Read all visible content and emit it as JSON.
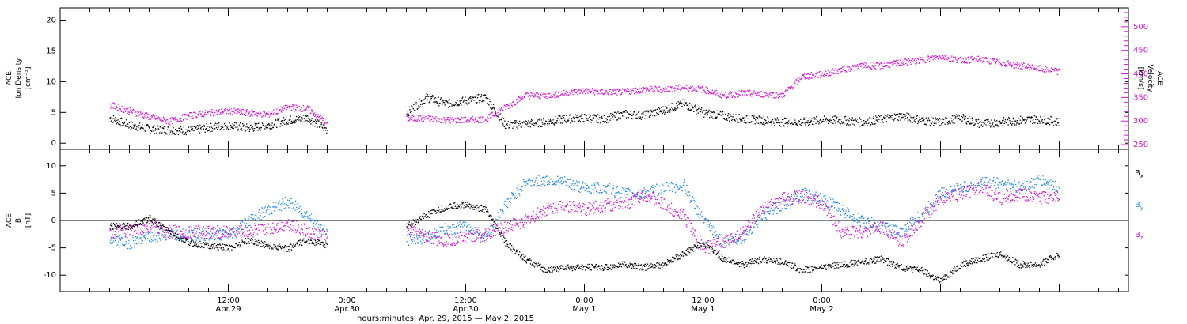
{
  "chart_data": [
    {
      "type": "scatter",
      "panel": "top",
      "ylabel_lines": [
        "ACE",
        "Ion Density",
        "[cm⁻³]"
      ],
      "yticks": [
        "0",
        "5",
        "10",
        "15",
        "20"
      ],
      "ylim": [
        -1,
        22
      ],
      "right_axis": {
        "label_lines": [
          "ACE",
          "Velocity",
          "[km/s]"
        ],
        "ticks": [
          "250",
          "300",
          "350",
          "400",
          "450",
          "500"
        ],
        "ylim": [
          240,
          540
        ],
        "color": "#d414d4"
      },
      "x_hours": [
        0,
        2,
        4,
        6,
        8,
        10,
        12,
        14,
        16,
        18,
        20,
        22,
        24,
        26,
        28,
        30,
        32,
        34,
        36,
        38,
        40,
        42,
        44,
        46,
        48,
        50,
        52,
        54,
        56,
        58,
        60,
        62,
        64,
        66,
        68,
        70,
        72,
        74,
        76,
        78,
        80,
        82,
        84,
        86,
        88,
        90,
        92,
        94,
        96
      ],
      "series": [
        {
          "color": "#000000",
          "values": [
            4.2,
            3,
            2.4,
            2.2,
            2.1,
            2.6,
            3,
            2.5,
            3,
            3.8,
            4.2,
            2.2,
            null,
            null,
            null,
            5,
            7.5,
            6.5,
            7,
            7.5,
            3,
            3.2,
            3.5,
            4,
            4.2,
            4,
            4.8,
            4.6,
            5.5,
            6.5,
            5,
            4.5,
            4,
            3.8,
            3.5,
            3.5,
            3.8,
            3.8,
            3.5,
            4,
            4.5,
            3.8,
            3.5,
            4.2,
            3.2,
            3.5,
            3.8,
            4,
            3.5
          ]
        },
        {
          "color": "#d414d4",
          "values": [
            335,
            322,
            310,
            300,
            312,
            318,
            322,
            318,
            315,
            330,
            327,
            296,
            null,
            null,
            null,
            306,
            306,
            303,
            303,
            305,
            330,
            355,
            355,
            360,
            365,
            362,
            363,
            368,
            368,
            372,
            368,
            355,
            360,
            358,
            356,
            395,
            400,
            410,
            418,
            418,
            425,
            430,
            438,
            430,
            432,
            425,
            418,
            412,
            405
          ]
        }
      ]
    },
    {
      "type": "scatter",
      "panel": "bottom",
      "ylabel_lines": [
        "ACE",
        "B",
        "[nT]"
      ],
      "yticks": [
        "-10",
        "-5",
        "0",
        "5",
        "10"
      ],
      "ylim": [
        -13,
        13
      ],
      "zero_line": true,
      "x_hours": [
        0,
        2,
        4,
        6,
        8,
        10,
        12,
        14,
        16,
        18,
        20,
        22,
        24,
        26,
        28,
        30,
        32,
        34,
        36,
        38,
        40,
        42,
        44,
        46,
        48,
        50,
        52,
        54,
        56,
        58,
        60,
        62,
        64,
        66,
        68,
        70,
        72,
        74,
        76,
        78,
        80,
        82,
        84,
        86,
        88,
        90,
        92,
        94,
        96
      ],
      "series": [
        {
          "name": "B",
          "subscript": "x",
          "color": "#000000",
          "values": [
            -1,
            -1,
            0.5,
            -2,
            -4,
            -4.5,
            -5,
            -3.5,
            -4.5,
            -5,
            -3.5,
            -4.5,
            null,
            null,
            null,
            -1,
            1,
            2.5,
            3,
            2,
            -4,
            -7,
            -9,
            -8.5,
            -8.5,
            -8.5,
            -8,
            -8.5,
            -8,
            -6,
            -4,
            -7,
            -8,
            -7,
            -7.5,
            -9,
            -8.5,
            -8,
            -7.5,
            -7,
            -8.5,
            -9,
            -11,
            -8,
            -7,
            -6,
            -8,
            -8,
            -6
          ]
        },
        {
          "name": "B",
          "subscript": "y",
          "color": "#1e88e5",
          "values": [
            -3.5,
            -4,
            -3,
            -2.5,
            -2.5,
            -2.5,
            -2.5,
            0,
            2,
            3.5,
            1,
            -2.5,
            null,
            null,
            null,
            -3.5,
            -3,
            -1.5,
            -1,
            -3,
            3,
            7,
            7.5,
            7,
            6,
            6,
            5,
            5,
            6,
            6.5,
            0,
            -4,
            -3,
            1,
            3,
            5,
            4,
            2,
            0,
            -1,
            -2,
            1,
            5,
            6,
            7,
            7,
            6,
            7.5,
            6
          ]
        },
        {
          "name": "B",
          "subscript": "z",
          "color": "#d414d4",
          "values": [
            -2,
            -2,
            -1,
            -2,
            -2,
            -2,
            -2,
            -2,
            -1.5,
            -0.5,
            -2,
            -3,
            null,
            null,
            null,
            -1.5,
            -3,
            -3.5,
            -3,
            -2.5,
            -1,
            0,
            2,
            3,
            2,
            3,
            3,
            5,
            3,
            1,
            -5,
            -4,
            -2,
            2,
            4,
            4.5,
            3,
            -2,
            -2,
            -1,
            -4,
            0,
            4,
            5,
            6,
            4,
            5,
            4,
            5
          ]
        }
      ]
    }
  ],
  "x_axis": {
    "ticks": [
      {
        "time": "12:00",
        "date": "Apr.29"
      },
      {
        "time": "0:00",
        "date": "Apr.30"
      },
      {
        "time": "12:00",
        "date": "Apr.30"
      },
      {
        "time": "0:00",
        "date": "May 1"
      },
      {
        "time": "12:00",
        "date": "May 1"
      },
      {
        "time": "0:00",
        "date": "May 2"
      }
    ],
    "label": "hours:minutes, Apr. 29, 2015 — May  2, 2015"
  }
}
